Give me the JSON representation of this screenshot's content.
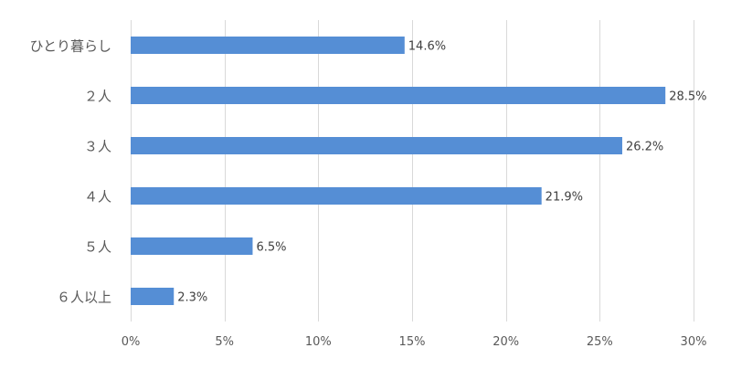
{
  "chart_data": {
    "type": "bar",
    "orientation": "horizontal",
    "categories": [
      "ひとり暮らし",
      "２人",
      "３人",
      "４人",
      "５人",
      "６人以上"
    ],
    "values": [
      14.6,
      28.5,
      26.2,
      21.9,
      6.5,
      2.3
    ],
    "value_labels": [
      "14.6%",
      "28.5%",
      "26.2%",
      "21.9%",
      "6.5%",
      "2.3%"
    ],
    "title": "",
    "xlabel": "",
    "ylabel": "",
    "xlim": [
      0,
      30
    ],
    "x_ticks": [
      0,
      5,
      10,
      15,
      20,
      25,
      30
    ],
    "x_tick_labels": [
      "0%",
      "5%",
      "10%",
      "15%",
      "20%",
      "25%",
      "30%"
    ],
    "grid": true,
    "legend": "none",
    "bar_color": "#558ED5",
    "grid_color": "#D9D9D9"
  }
}
